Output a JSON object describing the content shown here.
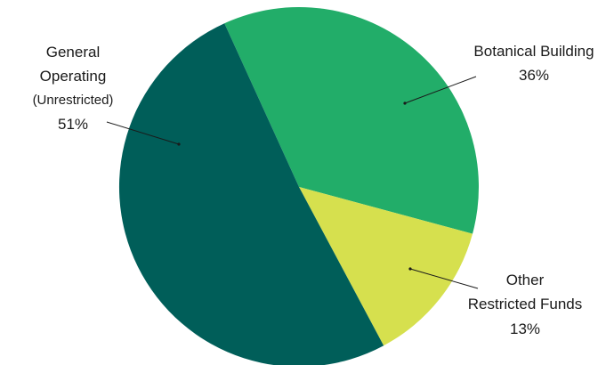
{
  "chart_data": {
    "type": "pie",
    "title": "",
    "slices": [
      {
        "key": "botanical",
        "label_lines": [
          "Botanical Building",
          "36%"
        ],
        "value": 36,
        "color": "#22ad69"
      },
      {
        "key": "other",
        "label_lines": [
          "Other",
          "Restricted Funds",
          "13%"
        ],
        "value": 13,
        "color": "#d6e04e"
      },
      {
        "key": "general",
        "label_lines": [
          "General",
          "Operating",
          "(Unrestricted)",
          "51%"
        ],
        "value": 51,
        "color": "#005e59"
      }
    ]
  }
}
